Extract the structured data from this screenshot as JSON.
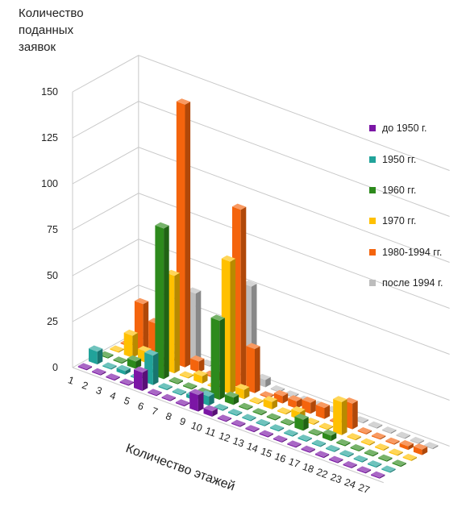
{
  "chart_data": {
    "type": "bar",
    "subtype": "3d-clustered-bar",
    "title": "",
    "ylabel": "Количество поданных заявок",
    "xlabel": "Количество этажей",
    "ylim": [
      0,
      150
    ],
    "yticks": [
      "0",
      "25",
      "50",
      "75",
      "100",
      "125",
      "150"
    ],
    "categories": [
      "1",
      "2",
      "3",
      "4",
      "5",
      "6",
      "7",
      "8",
      "9",
      "10",
      "11",
      "12",
      "13",
      "14",
      "15",
      "16",
      "17",
      "18",
      "22",
      "23",
      "24",
      "27"
    ],
    "legend_position": "right",
    "grid": true,
    "series": [
      {
        "name": "до 1950 г.",
        "color": "#7b16a5",
        "values": [
          0,
          0,
          0,
          0,
          10,
          0,
          0,
          0,
          9,
          3,
          0,
          0,
          0,
          0,
          0,
          0,
          0,
          0,
          0,
          0,
          0,
          0
        ]
      },
      {
        "name": "1950 гг.",
        "color": "#21a39a",
        "values": [
          7,
          0,
          2,
          0,
          16,
          0,
          0,
          2,
          5,
          0,
          0,
          0,
          0,
          0,
          0,
          0,
          0,
          0,
          0,
          0,
          0,
          0
        ]
      },
      {
        "name": "1960 гг.",
        "color": "#2d8a1c",
        "values": [
          0,
          0,
          4,
          0,
          82,
          0,
          0,
          0,
          43,
          4,
          0,
          0,
          0,
          0,
          6,
          0,
          3,
          0,
          0,
          0,
          0,
          0
        ]
      },
      {
        "name": "1970 гг.",
        "color": "#ffc000",
        "values": [
          0,
          12,
          6,
          0,
          53,
          0,
          4,
          0,
          72,
          5,
          0,
          4,
          0,
          4,
          0,
          0,
          18,
          0,
          0,
          0,
          0,
          0
        ]
      },
      {
        "name": "1980-1994 гг.",
        "color": "#f4640d",
        "values": [
          0,
          26,
          18,
          0,
          143,
          6,
          0,
          4,
          97,
          24,
          0,
          4,
          4,
          6,
          6,
          0,
          14,
          0,
          0,
          0,
          2,
          3
        ]
      },
      {
        "name": "после 1994 г.",
        "color": "#bdbdbd",
        "values": [
          0,
          0,
          0,
          0,
          37,
          0,
          0,
          0,
          52,
          4,
          0,
          0,
          0,
          0,
          0,
          0,
          0,
          0,
          0,
          0,
          0,
          0
        ]
      }
    ]
  }
}
